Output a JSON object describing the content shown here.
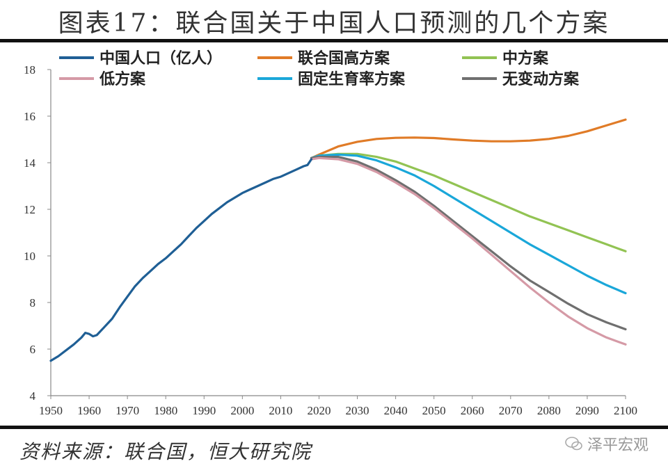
{
  "header": {
    "title": "图表17：联合国关于中国人口预测的几个方案"
  },
  "footer": {
    "source": "资料来源：联合国，恒大研究院",
    "watermark": "泽平宏观"
  },
  "chart_data": {
    "type": "line",
    "title": "图表17：联合国关于中国人口预测的几个方案",
    "xlabel": "",
    "ylabel": "",
    "xlim": [
      1950,
      2100
    ],
    "ylim": [
      4,
      18
    ],
    "x_ticks": [
      1950,
      1960,
      1970,
      1980,
      1990,
      2000,
      2010,
      2020,
      2030,
      2040,
      2050,
      2060,
      2070,
      2080,
      2090,
      2100
    ],
    "y_ticks": [
      4,
      6,
      8,
      10,
      12,
      14,
      16,
      18
    ],
    "grid": false,
    "legend_position": "top",
    "series": [
      {
        "name": "中国人口（亿人）",
        "color": "#1f5f95",
        "x": [
          1950,
          1952,
          1954,
          1956,
          1958,
          1959,
          1960,
          1961,
          1962,
          1964,
          1966,
          1968,
          1970,
          1972,
          1974,
          1976,
          1978,
          1980,
          1982,
          1984,
          1986,
          1988,
          1990,
          1992,
          1994,
          1996,
          1998,
          2000,
          2002,
          2004,
          2006,
          2008,
          2010,
          2012,
          2014,
          2016,
          2017,
          2018
        ],
        "y": [
          5.5,
          5.7,
          5.95,
          6.2,
          6.5,
          6.7,
          6.65,
          6.55,
          6.6,
          6.95,
          7.3,
          7.8,
          8.25,
          8.7,
          9.05,
          9.35,
          9.65,
          9.9,
          10.2,
          10.5,
          10.85,
          11.2,
          11.5,
          11.8,
          12.05,
          12.3,
          12.5,
          12.7,
          12.85,
          13.0,
          13.15,
          13.3,
          13.4,
          13.55,
          13.7,
          13.85,
          13.9,
          14.15
        ]
      },
      {
        "name": "联合国高方案",
        "color": "#e07b27",
        "x": [
          2018,
          2020,
          2025,
          2030,
          2035,
          2040,
          2045,
          2050,
          2055,
          2060,
          2065,
          2070,
          2075,
          2080,
          2085,
          2090,
          2095,
          2100
        ],
        "y": [
          14.2,
          14.35,
          14.7,
          14.9,
          15.02,
          15.07,
          15.08,
          15.06,
          15.0,
          14.95,
          14.92,
          14.92,
          14.95,
          15.02,
          15.15,
          15.35,
          15.6,
          15.85
        ]
      },
      {
        "name": "中方案",
        "color": "#92c353",
        "x": [
          2018,
          2020,
          2025,
          2030,
          2035,
          2040,
          2045,
          2050,
          2055,
          2060,
          2065,
          2070,
          2075,
          2080,
          2085,
          2090,
          2095,
          2100
        ],
        "y": [
          14.2,
          14.3,
          14.38,
          14.38,
          14.25,
          14.05,
          13.75,
          13.45,
          13.1,
          12.75,
          12.4,
          12.05,
          11.7,
          11.4,
          11.1,
          10.8,
          10.5,
          10.2
        ]
      },
      {
        "name": "低方案",
        "color": "#d59aa6",
        "x": [
          2018,
          2020,
          2025,
          2030,
          2035,
          2040,
          2045,
          2050,
          2055,
          2060,
          2065,
          2070,
          2075,
          2080,
          2085,
          2090,
          2095,
          2100
        ],
        "y": [
          14.15,
          14.2,
          14.15,
          13.95,
          13.6,
          13.15,
          12.65,
          12.05,
          11.4,
          10.75,
          10.05,
          9.35,
          8.65,
          8.0,
          7.4,
          6.9,
          6.5,
          6.2
        ]
      },
      {
        "name": "固定生育率方案",
        "color": "#1aa7d9",
        "x": [
          2018,
          2020,
          2025,
          2030,
          2035,
          2040,
          2045,
          2050,
          2055,
          2060,
          2065,
          2070,
          2075,
          2080,
          2085,
          2090,
          2095,
          2100
        ],
        "y": [
          14.2,
          14.3,
          14.35,
          14.3,
          14.1,
          13.8,
          13.45,
          13.0,
          12.5,
          12.0,
          11.5,
          11.0,
          10.5,
          10.05,
          9.6,
          9.15,
          8.75,
          8.4
        ]
      },
      {
        "name": "无变动方案",
        "color": "#6f6f6f",
        "x": [
          2018,
          2020,
          2025,
          2030,
          2035,
          2040,
          2045,
          2050,
          2055,
          2060,
          2065,
          2070,
          2075,
          2080,
          2085,
          2090,
          2095,
          2100
        ],
        "y": [
          14.2,
          14.25,
          14.25,
          14.05,
          13.7,
          13.25,
          12.75,
          12.15,
          11.5,
          10.85,
          10.2,
          9.55,
          8.95,
          8.45,
          7.95,
          7.5,
          7.15,
          6.85
        ]
      }
    ]
  }
}
